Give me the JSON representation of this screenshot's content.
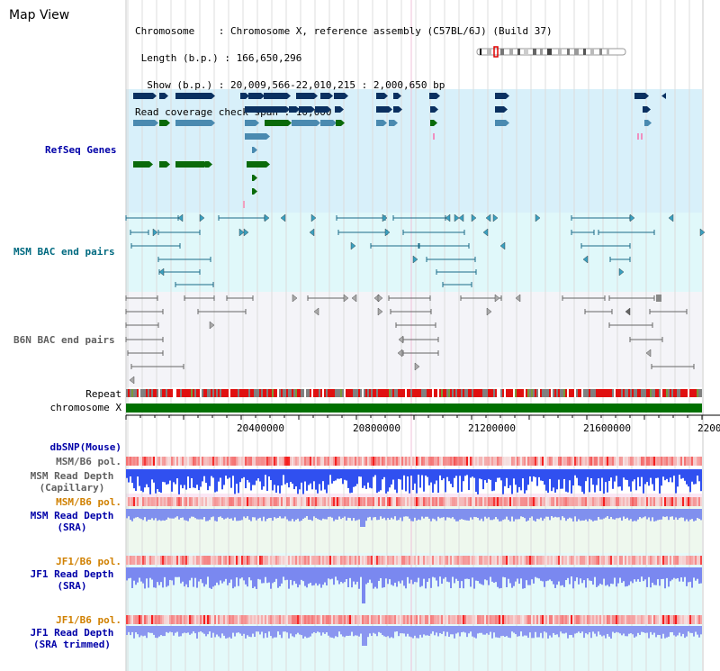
{
  "header": {
    "title": "Map View"
  },
  "info": {
    "chromosome_line": "Chromosome    : Chromosome X, reference assembly (C57BL/6J) (Build 37)",
    "length_line": " Length (b.p.) : 166,650,296",
    "show_line": "  Show (b.p.) : 20,009,566-22,010,215 : 2,000,650 bp",
    "coverage_line": "Read coverage check span : 10,000"
  },
  "tracks": {
    "refseq": "RefSeq Genes",
    "msm_bac": "MSM BAC end pairs",
    "b6n_bac": "B6N BAC end pairs",
    "repeat": "Repeat",
    "chromosome": "chromosome X",
    "dbsnp": "dbSNP(Mouse)",
    "msm_b6_pol_1": "MSM/B6 pol.",
    "msm_depth_cap_1": "MSM Read Depth",
    "msm_depth_cap_2": "(Capillary)",
    "msm_b6_pol_2": "MSM/B6 pol.",
    "msm_depth_sra_1": "MSM Read Depth",
    "msm_depth_sra_2": "(SRA)",
    "jf1_b6_pol_1": "JF1/B6 pol.",
    "jf1_depth_sra_1": "JF1 Read Depth",
    "jf1_depth_sra_2": "(SRA)",
    "jf1_b6_pol_2": "JF1/B6 pol.",
    "jf1_depth_trim_1": "JF1 Read Depth",
    "jf1_depth_trim_2": "(SRA trimmed)"
  },
  "axis": {
    "ticks": [
      "20400000",
      "20800000",
      "21200000",
      "21600000",
      "2200"
    ]
  },
  "colors": {
    "refseq_bg": "#d8f0fa",
    "msm_bg": "#e0f8fa",
    "b6n_bg": "#f4f4f8",
    "dark_navy": "#0a3060",
    "mid_blue": "#4a8ab0",
    "green": "#0a6a0a",
    "repeat_red": "#e01010",
    "chrom_green": "#007000",
    "depth_blue": "#3050f0"
  }
}
